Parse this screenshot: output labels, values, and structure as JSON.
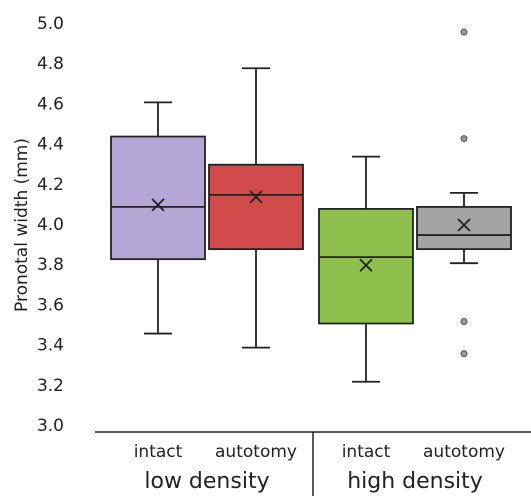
{
  "chart_data": {
    "type": "box",
    "ylabel": "Pronotal width (mm)",
    "ylim": [
      3.0,
      5.0
    ],
    "yticks": [
      {
        "value": 3.0,
        "label": "3.0"
      },
      3.2,
      3.4,
      3.6,
      3.8,
      {
        "value": 4.0,
        "label": "4.0"
      },
      4.2,
      4.4,
      4.6,
      4.8,
      {
        "value": 5.0,
        "label": "5.0"
      }
    ],
    "groups": [
      {
        "name": "low density",
        "boxes": [
          {
            "category": "intact",
            "color": "#b4a7d6",
            "whislo": 3.46,
            "q1": 3.83,
            "med": 4.09,
            "q3": 4.44,
            "whishi": 4.61,
            "mean": 4.1,
            "outliers": []
          },
          {
            "category": "autotomy",
            "color": "#d24b4b",
            "whislo": 3.39,
            "q1": 3.88,
            "med": 4.15,
            "q3": 4.3,
            "whishi": 4.78,
            "mean": 4.14,
            "outliers": []
          }
        ]
      },
      {
        "name": "high density",
        "boxes": [
          {
            "category": "intact",
            "color": "#8fbf4c",
            "whislo": 3.22,
            "q1": 3.51,
            "med": 3.84,
            "q3": 4.08,
            "whishi": 4.34,
            "mean": 3.8,
            "outliers": []
          },
          {
            "category": "autotomy",
            "color": "#a3a3a3",
            "whislo": 3.81,
            "q1": 3.88,
            "med": 3.95,
            "q3": 4.09,
            "whishi": 4.16,
            "mean": 4.0,
            "outliers": [
              4.96,
              4.43,
              3.52,
              3.36
            ]
          }
        ]
      }
    ]
  }
}
